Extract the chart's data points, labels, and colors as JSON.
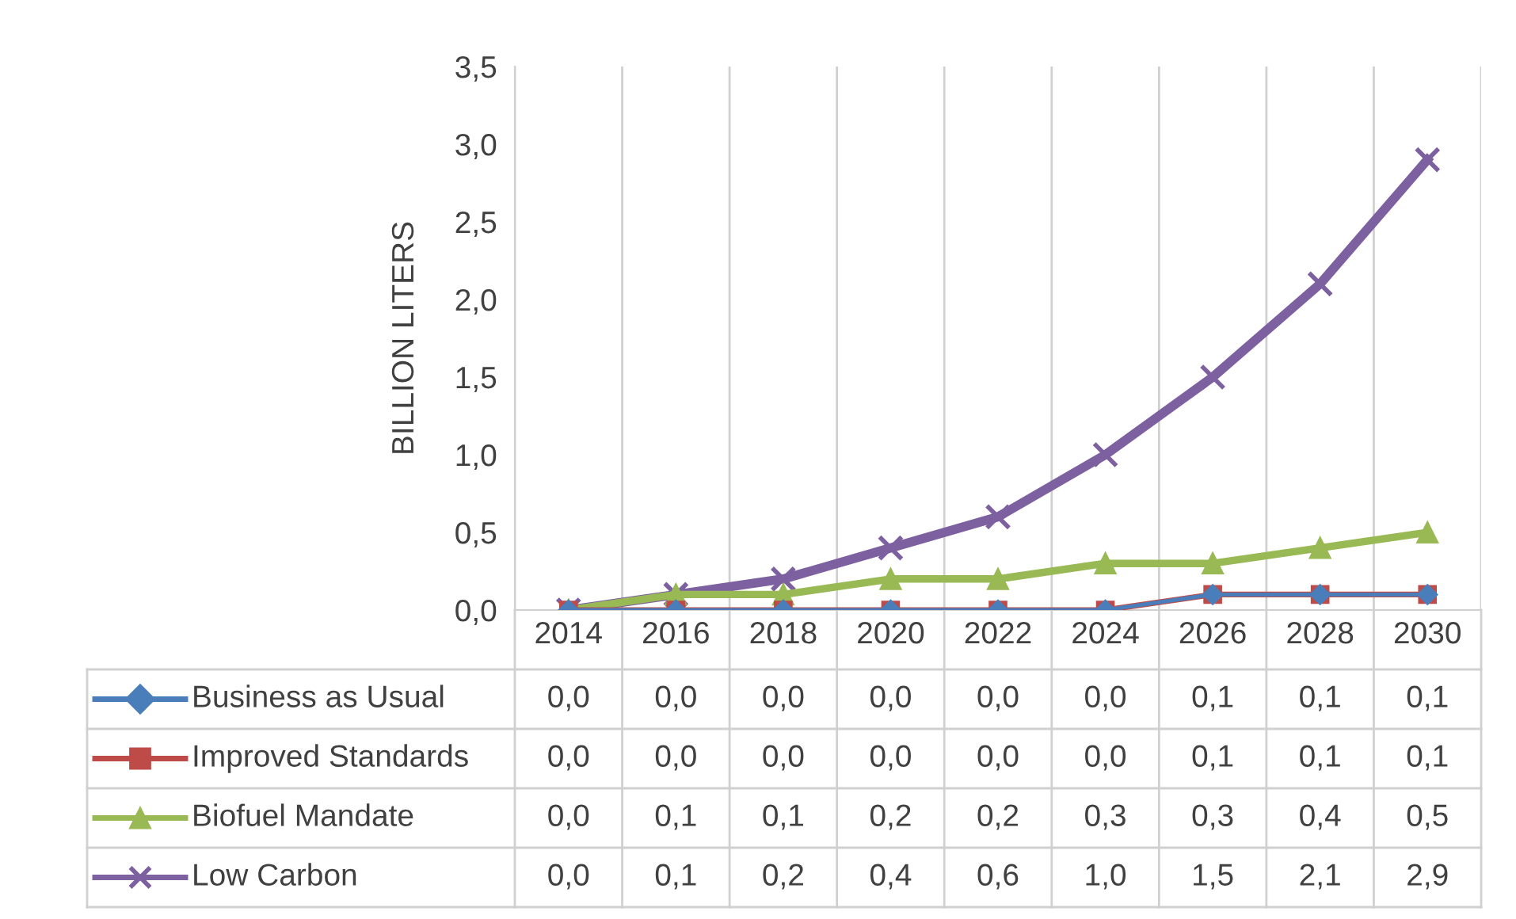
{
  "chart_data": {
    "type": "line",
    "ylabel": "BILLION LITERS",
    "categories": [
      "2014",
      "2016",
      "2018",
      "2020",
      "2022",
      "2024",
      "2026",
      "2028",
      "2030"
    ],
    "ylim": [
      0,
      3.5
    ],
    "yticks": [
      {
        "value": 0,
        "label": "0,0"
      },
      {
        "value": 0.5,
        "label": "0,5"
      },
      {
        "value": 1.0,
        "label": "1,0"
      },
      {
        "value": 1.5,
        "label": "1,5"
      },
      {
        "value": 2.0,
        "label": "2,0"
      },
      {
        "value": 2.5,
        "label": "2,5"
      },
      {
        "value": 3.0,
        "label": "3,0"
      },
      {
        "value": 3.5,
        "label": "3,5"
      }
    ],
    "grid": "x",
    "legend": "bottom",
    "line_style": "solid",
    "series": [
      {
        "name": "Business as Usual",
        "color": "#4a7ebb",
        "marker": "diamond",
        "values": [
          0.0,
          0.0,
          0.0,
          0.0,
          0.0,
          0.0,
          0.1,
          0.1,
          0.1
        ],
        "value_labels": [
          "0,0",
          "0,0",
          "0,0",
          "0,0",
          "0,0",
          "0,0",
          "0,1",
          "0,1",
          "0,1"
        ]
      },
      {
        "name": "Improved Standards",
        "color": "#be4b48",
        "marker": "square",
        "values": [
          0.0,
          0.0,
          0.0,
          0.0,
          0.0,
          0.0,
          0.1,
          0.1,
          0.1
        ],
        "value_labels": [
          "0,0",
          "0,0",
          "0,0",
          "0,0",
          "0,0",
          "0,0",
          "0,1",
          "0,1",
          "0,1"
        ]
      },
      {
        "name": "Biofuel Mandate",
        "color": "#98b954",
        "marker": "triangle",
        "values": [
          0.0,
          0.1,
          0.1,
          0.2,
          0.2,
          0.3,
          0.3,
          0.4,
          0.5
        ],
        "value_labels": [
          "0,0",
          "0,1",
          "0,1",
          "0,2",
          "0,2",
          "0,3",
          "0,3",
          "0,4",
          "0,5"
        ]
      },
      {
        "name": "Low Carbon",
        "color": "#7d60a0",
        "marker": "cross",
        "values": [
          0.0,
          0.1,
          0.2,
          0.4,
          0.6,
          1.0,
          1.5,
          2.1,
          2.9
        ],
        "value_labels": [
          "0,0",
          "0,1",
          "0,2",
          "0,4",
          "0,6",
          "1,0",
          "1,5",
          "2,1",
          "2,9"
        ]
      }
    ]
  }
}
